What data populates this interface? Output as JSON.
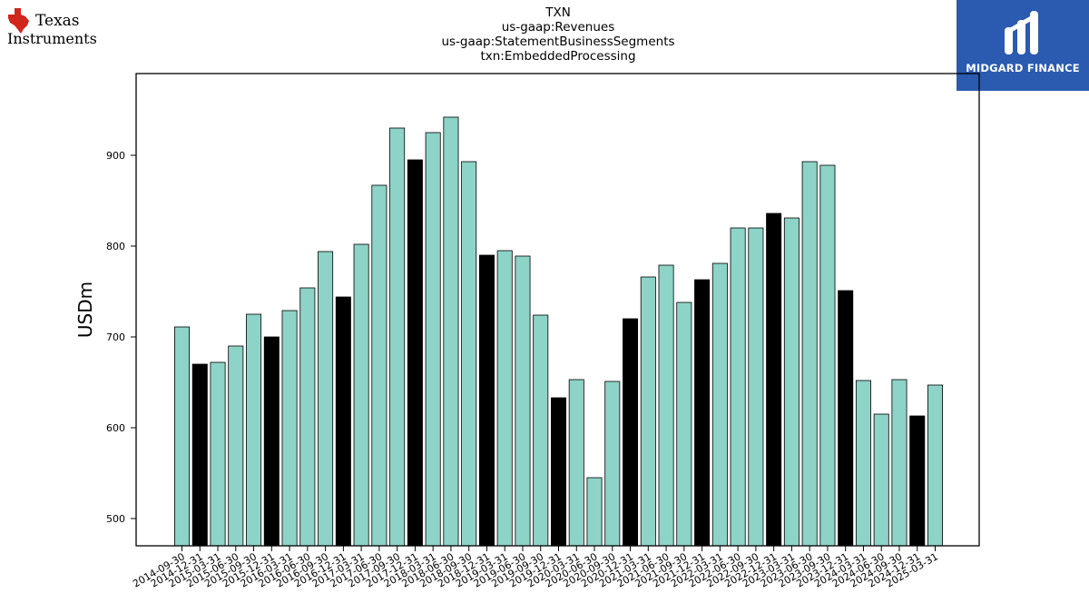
{
  "header": {
    "ti_logo_text_line1": "Texas",
    "ti_logo_text_line2": "Instruments",
    "midgard_logo_text": "MIDGARD FINANCE"
  },
  "colors": {
    "bar_default": "#8dd3c7",
    "bar_highlight": "#000000",
    "ti_red": "#d0261c",
    "midgard_blue": "#2a5bb0"
  },
  "chart_data": {
    "type": "bar",
    "title_lines": [
      "TXN",
      "us-gaap:Revenues",
      "us-gaap:StatementBusinessSegments",
      "txn:EmbeddedProcessing"
    ],
    "xlabel": "",
    "ylabel": "USDm",
    "ylim": [
      470,
      990
    ],
    "yticks": [
      500,
      600,
      700,
      800,
      900
    ],
    "grid": false,
    "categories": [
      "2014-09-30",
      "2014-12-31",
      "2015-03-31",
      "2015-06-30",
      "2015-09-30",
      "2015-12-31",
      "2016-03-31",
      "2016-06-30",
      "2016-09-30",
      "2016-12-31",
      "2017-03-31",
      "2017-06-30",
      "2017-09-30",
      "2017-12-31",
      "2018-03-31",
      "2018-06-30",
      "2018-09-30",
      "2018-12-31",
      "2019-03-31",
      "2019-06-30",
      "2019-09-30",
      "2019-12-31",
      "2020-03-31",
      "2020-06-30",
      "2020-09-30",
      "2020-12-31",
      "2021-03-31",
      "2021-06-30",
      "2021-09-30",
      "2021-12-31",
      "2022-03-31",
      "2022-06-30",
      "2022-09-30",
      "2022-12-31",
      "2023-03-31",
      "2023-06-30",
      "2023-09-30",
      "2023-12-31",
      "2024-03-31",
      "2024-06-30",
      "2024-09-30",
      "2024-12-31",
      "2025-03-31"
    ],
    "values": [
      711,
      670,
      672,
      690,
      725,
      700,
      729,
      754,
      794,
      744,
      802,
      867,
      930,
      895,
      925,
      942,
      893,
      790,
      795,
      789,
      724,
      633,
      653,
      545,
      651,
      720,
      766,
      779,
      738,
      763,
      781,
      820,
      820,
      836,
      831,
      893,
      889,
      751,
      652,
      615,
      653,
      613,
      647
    ],
    "highlight_indices": [
      1,
      5,
      9,
      13,
      17,
      21,
      25,
      29,
      33,
      37,
      41
    ]
  }
}
